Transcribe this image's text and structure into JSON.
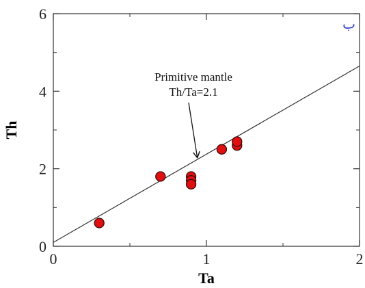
{
  "chart_data": {
    "type": "scatter",
    "title": "",
    "panel_label": "ب",
    "xlabel": "Ta",
    "ylabel": "Th",
    "xlim": [
      0,
      2
    ],
    "ylim": [
      0,
      6
    ],
    "xticks": [
      0,
      1,
      2
    ],
    "xminor": [
      0.5,
      1.5
    ],
    "yticks": [
      0,
      2,
      4,
      6
    ],
    "yminor": [
      1,
      3,
      5
    ],
    "grid": false,
    "points": [
      {
        "x": 0.3,
        "y": 0.6
      },
      {
        "x": 0.7,
        "y": 1.8
      },
      {
        "x": 0.9,
        "y": 1.8
      },
      {
        "x": 0.9,
        "y": 1.7
      },
      {
        "x": 0.9,
        "y": 1.6
      },
      {
        "x": 1.1,
        "y": 2.5
      },
      {
        "x": 1.2,
        "y": 2.6
      },
      {
        "x": 1.2,
        "y": 2.7
      }
    ],
    "reference_line": {
      "x": [
        0,
        2
      ],
      "y": [
        0.1,
        4.65
      ]
    },
    "annotation": {
      "lines": [
        "Primitive mantle",
        "Th/Ta=2.1"
      ],
      "arrow_tip": {
        "x": 0.94,
        "y": 2.3
      }
    },
    "marker_color": "#e01010",
    "marker_edge_color": "#3a0a0a"
  }
}
